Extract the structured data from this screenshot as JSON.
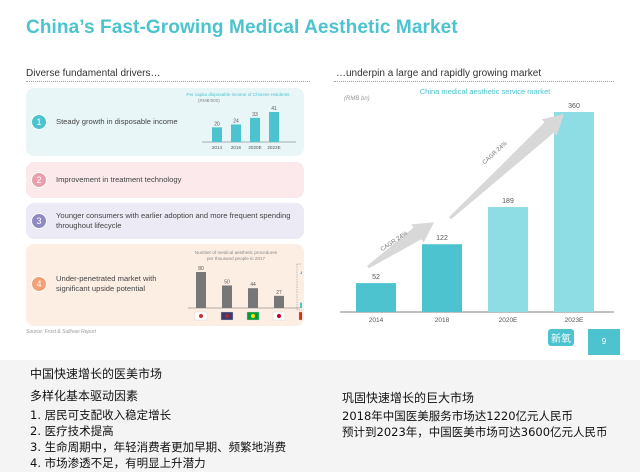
{
  "slide": {
    "title": "China’s Fast-Growing Medical Aesthetic Market",
    "left_heading": "Diverse fundamental drivers…",
    "right_heading": "…underpin a large and rapidly growing market",
    "source": "Source: Frost & Sullivan Report",
    "page_number": "9",
    "logo_text": "新氧"
  },
  "drivers": [
    {
      "num": "1",
      "text": "Steady growth in disposable income",
      "bg": "#e8f6f8",
      "circle": "#4cc3cf"
    },
    {
      "num": "2",
      "text": "Improvement in treatment technology",
      "bg": "#fbe9ec",
      "circle": "#e8a0ad"
    },
    {
      "num": "3",
      "text": "Younger consumers with earlier adoption and more frequent spending throughout lifecycle",
      "bg": "#ebeaf5",
      "circle": "#8f8ac2"
    },
    {
      "num": "4",
      "text": "Under-penetrated market with significant upside potential",
      "bg": "#fdeee4",
      "circle": "#f2a074"
    }
  ],
  "chart_data": [
    {
      "type": "bar",
      "title": "Per capita disposable income of Chinese residents",
      "unit": "(RMB'000)",
      "categories": [
        "2014",
        "2016",
        "2020E",
        "2023E"
      ],
      "values": [
        20,
        24,
        33,
        41
      ],
      "color": "#4cc3cf"
    },
    {
      "type": "bar",
      "title": "Number of medical aesthetic procedures per thousand people in 2017",
      "categories": [
        "South Korea",
        "USA",
        "Brazil",
        "Japan",
        "China"
      ],
      "values": [
        80,
        50,
        44,
        27,
        12
      ],
      "colors": [
        "#777777",
        "#777777",
        "#777777",
        "#777777",
        "#4cc3cf"
      ]
    },
    {
      "type": "bar",
      "title": "China medical aesthetic service market",
      "ylabel": "(RMB bn)",
      "categories": [
        "2014",
        "2018",
        "2020E",
        "2023E"
      ],
      "values": [
        52,
        122,
        189,
        360
      ],
      "colors": [
        "#4cc3cf",
        "#4cc3cf",
        "#8fdde4",
        "#8fdde4"
      ],
      "annotations": [
        "CAGR 24%",
        "CAGR 24%"
      ]
    }
  ],
  "caption": {
    "line1": "中国快速增长的医美市场",
    "left_heading": "多样化基本驱动因素",
    "items": [
      "1. 居民可支配收入稳定增长",
      "2. 医疗技术提高",
      "3. 生命周期中，年轻消费者更加早期、频繁地消费",
      "4. 市场渗透不足，有明显上升潜力"
    ],
    "right_heading": "巩固快速增长的巨大市场",
    "right_lines": [
      "2018年中国医美服务市场达1220亿元人民币",
      "预计到2023年，中国医美市场可达3600亿元人民币"
    ]
  }
}
